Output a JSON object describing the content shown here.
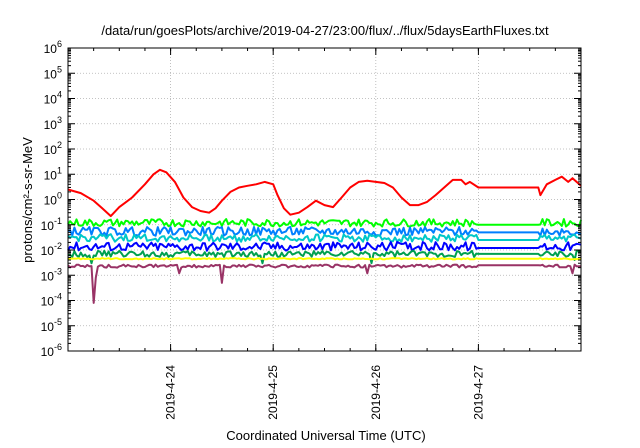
{
  "chart_data": {
    "type": "line",
    "title": "/data/run/goesPlots/archive/2019-04-27/23:00/flux/../flux/5daysEarthFluxes.txt",
    "xlabel": "Coordinated Universal Time (UTC)",
    "ylabel": "protons/cm²-s-sr-MeV",
    "x_scale": "time",
    "y_scale": "log",
    "xlim": [
      "2019-04-23T00:00",
      "2019-04-28T00:00"
    ],
    "ylim": [
      1e-06,
      1000000.0
    ],
    "grid": true,
    "x_tick_labels": [
      "2019-4-24",
      "2019-4-25",
      "2019-4-26",
      "2019-4-27"
    ],
    "x_ticks": [
      "2019-04-24T00:00",
      "2019-04-25T00:00",
      "2019-04-26T00:00",
      "2019-04-27T00:00"
    ],
    "y_tick_exponents": [
      -6,
      -5,
      -4,
      -3,
      -2,
      -1,
      0,
      1,
      2,
      3,
      4,
      5,
      6
    ],
    "series": [
      {
        "color": "#ff0000",
        "points": [
          [
            "2019-04-23T00:00",
            2.5
          ],
          [
            "2019-04-23T03:00",
            1.8
          ],
          [
            "2019-04-23T06:00",
            0.9
          ],
          [
            "2019-04-23T08:00",
            0.45
          ],
          [
            "2019-04-23T10:00",
            0.22
          ],
          [
            "2019-04-23T12:00",
            0.5
          ],
          [
            "2019-04-23T15:00",
            1.2
          ],
          [
            "2019-04-23T18:00",
            4
          ],
          [
            "2019-04-23T20:00",
            10
          ],
          [
            "2019-04-23T21:30",
            15
          ],
          [
            "2019-04-23T23:00",
            12
          ],
          [
            "2019-04-24T01:00",
            5
          ],
          [
            "2019-04-24T03:00",
            1.2
          ],
          [
            "2019-04-24T05:00",
            0.5
          ],
          [
            "2019-04-24T07:00",
            0.35
          ],
          [
            "2019-04-24T09:00",
            0.3
          ],
          [
            "2019-04-24T10:30",
            0.45
          ],
          [
            "2019-04-24T12:00",
            0.9
          ],
          [
            "2019-04-24T14:00",
            2
          ],
          [
            "2019-04-24T16:00",
            3
          ],
          [
            "2019-04-24T18:00",
            3.5
          ],
          [
            "2019-04-24T20:00",
            4
          ],
          [
            "2019-04-24T22:00",
            5
          ],
          [
            "2019-04-25T00:00",
            4
          ],
          [
            "2019-04-25T01:00",
            1.5
          ],
          [
            "2019-04-25T02:30",
            0.45
          ],
          [
            "2019-04-25T04:00",
            0.25
          ],
          [
            "2019-04-25T06:00",
            0.3
          ],
          [
            "2019-04-25T08:00",
            0.5
          ],
          [
            "2019-04-25T10:00",
            0.9
          ],
          [
            "2019-04-25T12:00",
            0.6
          ],
          [
            "2019-04-25T14:00",
            0.5
          ],
          [
            "2019-04-25T16:00",
            1.2
          ],
          [
            "2019-04-25T18:00",
            3
          ],
          [
            "2019-04-25T20:00",
            5
          ],
          [
            "2019-04-25T22:00",
            5.5
          ],
          [
            "2019-04-26T00:00",
            5
          ],
          [
            "2019-04-26T02:00",
            4.5
          ],
          [
            "2019-04-26T04:00",
            3
          ],
          [
            "2019-04-26T06:00",
            1.2
          ],
          [
            "2019-04-26T08:00",
            0.6
          ],
          [
            "2019-04-26T10:00",
            0.6
          ],
          [
            "2019-04-26T12:00",
            0.8
          ],
          [
            "2019-04-26T14:00",
            1.5
          ],
          [
            "2019-04-26T16:00",
            3
          ],
          [
            "2019-04-26T18:00",
            6
          ],
          [
            "2019-04-26T20:00",
            6
          ],
          [
            "2019-04-26T21:00",
            4
          ],
          [
            "2019-04-26T22:00",
            5
          ],
          [
            "2019-04-27T00:00",
            3
          ],
          [
            "2019-04-27T14:00",
            3
          ],
          [
            "2019-04-27T14:30",
            1.5
          ],
          [
            "2019-04-27T16:00",
            4
          ],
          [
            "2019-04-27T18:00",
            6
          ],
          [
            "2019-04-27T19:30",
            8
          ],
          [
            "2019-04-27T21:00",
            5
          ],
          [
            "2019-04-27T22:00",
            7
          ],
          [
            "2019-04-28T00:00",
            3.5
          ]
        ]
      },
      {
        "color": "#00ff00",
        "base": 0.12,
        "amp": 0.3,
        "flat": 0.1,
        "dips": []
      },
      {
        "color": "#007fff",
        "base": 0.055,
        "amp": 0.35,
        "flat": 0.05,
        "dips": []
      },
      {
        "color": "#00c8c8",
        "base": 0.03,
        "amp": 0.3,
        "flat": 0.025,
        "dips": []
      },
      {
        "color": "#0000ff",
        "base": 0.014,
        "amp": 0.35,
        "flat": 0.012,
        "dips": []
      },
      {
        "color": "#00a050",
        "base": 0.007,
        "amp": 0.25,
        "flat": 0.007,
        "dips": [
          [
            "2019-04-23T05:30",
            0.003
          ],
          [
            "2019-04-24T21:30",
            0.003
          ],
          [
            "2019-04-25T23:00",
            0.003
          ],
          [
            "2019-04-27T22:30",
            0.004
          ]
        ]
      },
      {
        "color": "#ffff00",
        "base": 0.0045,
        "amp": 0.05,
        "flat": 0.0045,
        "dips": []
      },
      {
        "color": "#993366",
        "base": 0.0023,
        "amp": 0.12,
        "flat": 0.0025,
        "dips": [
          [
            "2019-04-23T06:00",
            8e-05
          ],
          [
            "2019-04-23T06:30",
            0.0008
          ],
          [
            "2019-04-24T12:00",
            0.0005
          ],
          [
            "2019-04-24T02:00",
            0.0012
          ],
          [
            "2019-04-25T22:00",
            0.0012
          ],
          [
            "2019-04-27T22:00",
            0.0012
          ]
        ]
      }
    ]
  }
}
